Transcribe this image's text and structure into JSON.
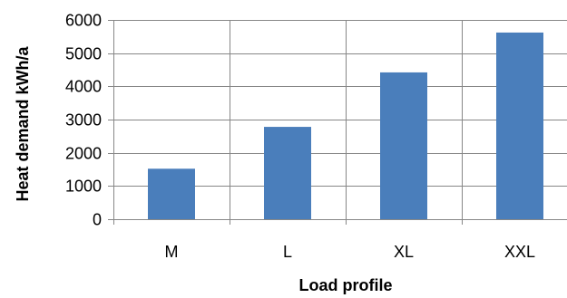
{
  "chart_data": {
    "type": "bar",
    "categories": [
      "M",
      "L",
      "XL",
      "XXL"
    ],
    "values": [
      1520,
      2780,
      4420,
      5620
    ],
    "title": "",
    "xlabel": "Load profile",
    "ylabel": "Heat demand kWh/a",
    "ylim": [
      0,
      6000
    ],
    "yticks": [
      0,
      1000,
      2000,
      3000,
      4000,
      5000,
      6000
    ],
    "grid": "both",
    "legend": "none",
    "bar_color": "#4a7ebb",
    "grid_color": "#878787",
    "axis_color": "#878787"
  }
}
